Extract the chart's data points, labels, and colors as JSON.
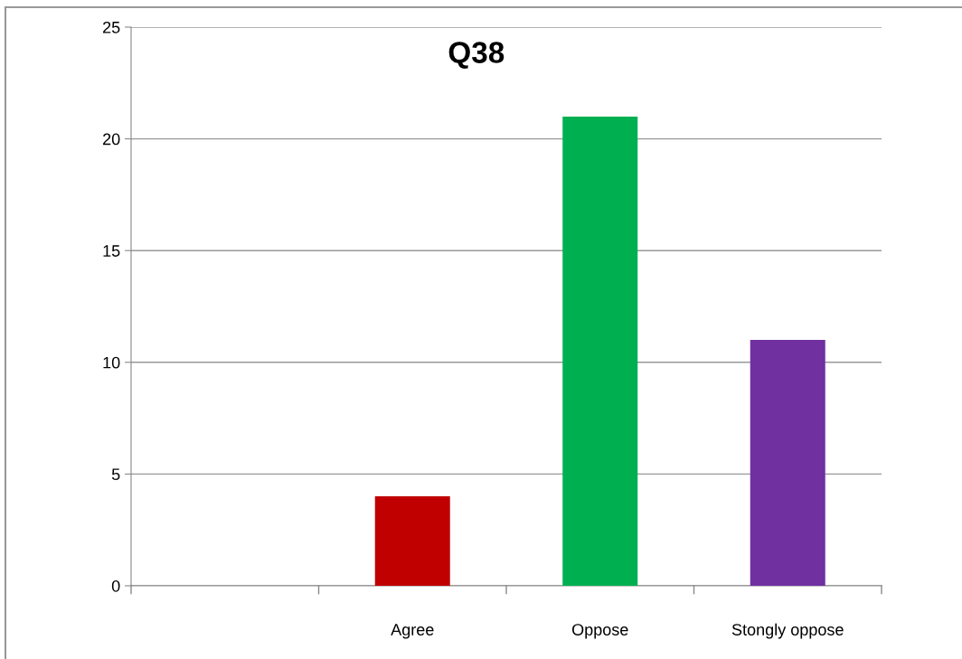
{
  "chart_data": {
    "type": "bar",
    "title": "Q38",
    "categories": [
      null,
      "Agree",
      "Oppose",
      "Stongly oppose"
    ],
    "values": [
      null,
      4,
      21,
      11
    ],
    "colors": [
      "#c00000",
      "#c00000",
      "#00b050",
      "#7030a0"
    ],
    "ylim": [
      0,
      25
    ],
    "yticks": [
      0,
      5,
      10,
      15,
      20,
      25
    ],
    "grid": "y"
  }
}
